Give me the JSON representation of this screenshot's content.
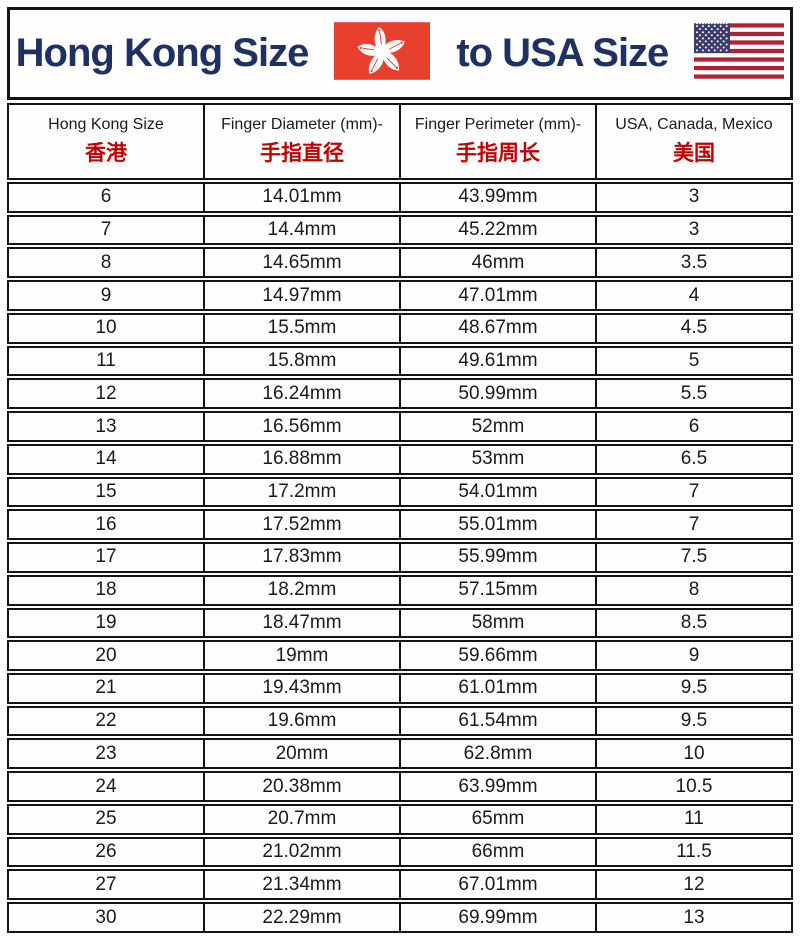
{
  "banner": {
    "title_left": "Hong Kong Size",
    "title_right": "to USA Size"
  },
  "table": {
    "headers": [
      {
        "en": "Hong Kong Size",
        "zh": "香港"
      },
      {
        "en": "Finger Diameter (mm)-",
        "zh": "手指直径"
      },
      {
        "en": "Finger Perimeter (mm)-",
        "zh": "手指周长"
      },
      {
        "en": "USA, Canada, Mexico",
        "zh": "美国"
      }
    ],
    "rows": [
      [
        "6",
        "14.01mm",
        "43.99mm",
        "3"
      ],
      [
        "7",
        "14.4mm",
        "45.22mm",
        "3"
      ],
      [
        "8",
        "14.65mm",
        "46mm",
        "3.5"
      ],
      [
        "9",
        "14.97mm",
        "47.01mm",
        "4"
      ],
      [
        "10",
        "15.5mm",
        "48.67mm",
        "4.5"
      ],
      [
        "11",
        "15.8mm",
        "49.61mm",
        "5"
      ],
      [
        "12",
        "16.24mm",
        "50.99mm",
        "5.5"
      ],
      [
        "13",
        "16.56mm",
        "52mm",
        "6"
      ],
      [
        "14",
        "16.88mm",
        "53mm",
        "6.5"
      ],
      [
        "15",
        "17.2mm",
        "54.01mm",
        "7"
      ],
      [
        "16",
        "17.52mm",
        "55.01mm",
        "7"
      ],
      [
        "17",
        "17.83mm",
        "55.99mm",
        "7.5"
      ],
      [
        "18",
        "18.2mm",
        "57.15mm",
        "8"
      ],
      [
        "19",
        "18.47mm",
        "58mm",
        "8.5"
      ],
      [
        "20",
        "19mm",
        "59.66mm",
        "9"
      ],
      [
        "21",
        "19.43mm",
        "61.01mm",
        "9.5"
      ],
      [
        "22",
        "19.6mm",
        "61.54mm",
        "9.5"
      ],
      [
        "23",
        "20mm",
        "62.8mm",
        "10"
      ],
      [
        "24",
        "20.38mm",
        "63.99mm",
        "10.5"
      ],
      [
        "25",
        "20.7mm",
        "65mm",
        "11"
      ],
      [
        "26",
        "21.02mm",
        "66mm",
        "11.5"
      ],
      [
        "27",
        "21.34mm",
        "67.01mm",
        "12"
      ],
      [
        "30",
        "22.29mm",
        "69.99mm",
        "13"
      ]
    ]
  },
  "colors": {
    "title_navy": "#1f3163",
    "header_red": "#c00000",
    "hk_flag_red": "#e8402f",
    "us_flag_red": "#b22234",
    "us_flag_blue": "#3c3b6e",
    "border_black": "#141414"
  },
  "chart_data": {
    "type": "table",
    "title": "Hong Kong Size to USA Size",
    "columns": [
      "Hong Kong Size (香港)",
      "Finger Diameter (mm) 手指直径",
      "Finger Perimeter (mm) 手指周长",
      "USA, Canada, Mexico (美国)"
    ],
    "rows": [
      [
        "6",
        "14.01mm",
        "43.99mm",
        "3"
      ],
      [
        "7",
        "14.4mm",
        "45.22mm",
        "3"
      ],
      [
        "8",
        "14.65mm",
        "46mm",
        "3.5"
      ],
      [
        "9",
        "14.97mm",
        "47.01mm",
        "4"
      ],
      [
        "10",
        "15.5mm",
        "48.67mm",
        "4.5"
      ],
      [
        "11",
        "15.8mm",
        "49.61mm",
        "5"
      ],
      [
        "12",
        "16.24mm",
        "50.99mm",
        "5.5"
      ],
      [
        "13",
        "16.56mm",
        "52mm",
        "6"
      ],
      [
        "14",
        "16.88mm",
        "53mm",
        "6.5"
      ],
      [
        "15",
        "17.2mm",
        "54.01mm",
        "7"
      ],
      [
        "16",
        "17.52mm",
        "55.01mm",
        "7"
      ],
      [
        "17",
        "17.83mm",
        "55.99mm",
        "7.5"
      ],
      [
        "18",
        "18.2mm",
        "57.15mm",
        "8"
      ],
      [
        "19",
        "18.47mm",
        "58mm",
        "8.5"
      ],
      [
        "20",
        "19mm",
        "59.66mm",
        "9"
      ],
      [
        "21",
        "19.43mm",
        "61.01mm",
        "9.5"
      ],
      [
        "22",
        "19.6mm",
        "61.54mm",
        "9.5"
      ],
      [
        "23",
        "20mm",
        "62.8mm",
        "10"
      ],
      [
        "24",
        "20.38mm",
        "63.99mm",
        "10.5"
      ],
      [
        "25",
        "20.7mm",
        "65mm",
        "11"
      ],
      [
        "26",
        "21.02mm",
        "66mm",
        "11.5"
      ],
      [
        "27",
        "21.34mm",
        "67.01mm",
        "12"
      ],
      [
        "30",
        "22.29mm",
        "69.99mm",
        "13"
      ]
    ],
    "legend_position": "none",
    "grid": true
  }
}
